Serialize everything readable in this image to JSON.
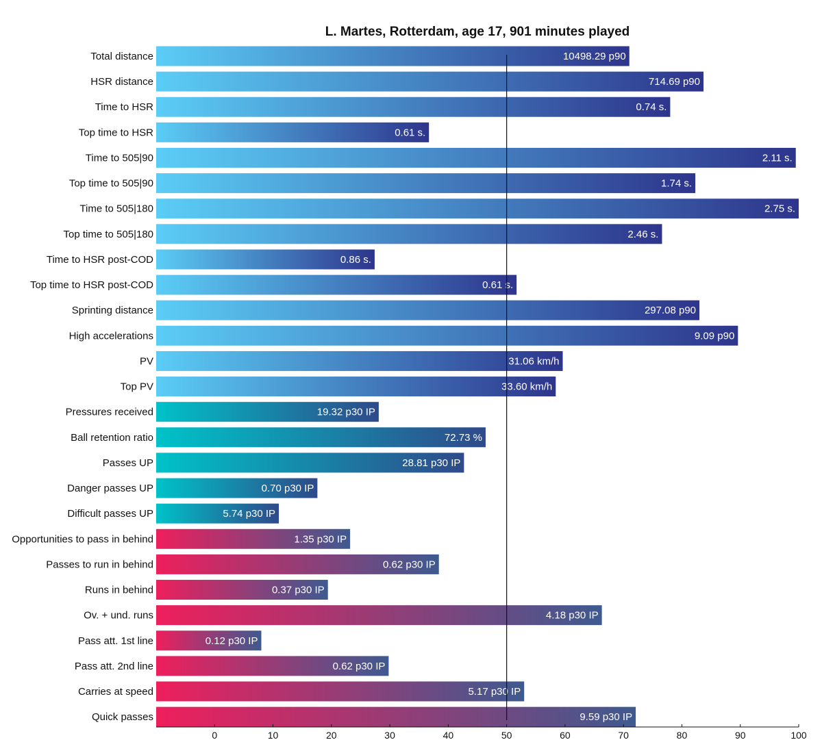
{
  "chart_data": {
    "type": "bar",
    "orientation": "horizontal",
    "title": "L. Martes, Rotterdam, age 17, 901 minutes played",
    "xlabel": "",
    "ylabel": "",
    "xlim": [
      -10,
      100
    ],
    "xticks": [
      0,
      10,
      20,
      30,
      40,
      50,
      60,
      70,
      80,
      90,
      100
    ],
    "reference_line": 50,
    "grid": false,
    "groups": [
      {
        "name": "physical",
        "color_start": "#5bcdf6",
        "color_end": "#2e358c"
      },
      {
        "name": "possession",
        "color_start": "#00c2c8",
        "color_end": "#2f4a8a"
      },
      {
        "name": "off-ball",
        "color_start": "#ee1f5c",
        "color_end": "#3e5a90"
      }
    ],
    "bars": [
      {
        "category": "Total distance",
        "value": 71,
        "label": "10498.29 p90",
        "group": "physical"
      },
      {
        "category": "HSR distance",
        "value": 83.7,
        "label": "714.69 p90",
        "group": "physical"
      },
      {
        "category": "Time to HSR",
        "value": 78,
        "label": "0.74 s.",
        "group": "physical"
      },
      {
        "category": "Top time to HSR",
        "value": 36.7,
        "label": "0.61 s.",
        "group": "physical"
      },
      {
        "category": "Time to 505|90",
        "value": 99.5,
        "label": "2.11 s.",
        "group": "physical"
      },
      {
        "category": "Top time to 505|90",
        "value": 82.3,
        "label": "1.74 s.",
        "group": "physical"
      },
      {
        "category": "Time to 505|180",
        "value": 100,
        "label": "2.75 s.",
        "group": "physical"
      },
      {
        "category": "Top time to 505|180",
        "value": 76.6,
        "label": "2.46 s.",
        "group": "physical"
      },
      {
        "category": "Time to HSR post-COD",
        "value": 27.4,
        "label": "0.86 s.",
        "group": "physical"
      },
      {
        "category": "Top time to HSR post-COD",
        "value": 51.7,
        "label": "0.61 s.",
        "group": "physical"
      },
      {
        "category": "Sprinting distance",
        "value": 83,
        "label": "297.08 p90",
        "group": "physical"
      },
      {
        "category": "High accelerations",
        "value": 89.6,
        "label": "9.09 p90",
        "group": "physical"
      },
      {
        "category": "PV",
        "value": 59.6,
        "label": "31.06 km/h",
        "group": "physical"
      },
      {
        "category": "Top PV",
        "value": 58.4,
        "label": "33.60 km/h",
        "group": "physical"
      },
      {
        "category": "Pressures received",
        "value": 28.1,
        "label": "19.32 p30 IP",
        "group": "possession"
      },
      {
        "category": "Ball retention ratio",
        "value": 46.4,
        "label": "72.73 %",
        "group": "possession"
      },
      {
        "category": "Passes UP",
        "value": 42.7,
        "label": "28.81 p30 IP",
        "group": "possession"
      },
      {
        "category": "Danger passes UP",
        "value": 17.6,
        "label": "0.70 p30 IP",
        "group": "possession"
      },
      {
        "category": "Difficult passes UP",
        "value": 11,
        "label": "5.74 p30 IP",
        "group": "possession"
      },
      {
        "category": "Opportunities to pass in behind",
        "value": 23.2,
        "label": "1.35 p30 IP",
        "group": "off-ball"
      },
      {
        "category": "Passes to run in behind",
        "value": 38.4,
        "label": "0.62 p30 IP",
        "group": "off-ball"
      },
      {
        "category": "Runs in behind",
        "value": 19.4,
        "label": "0.37 p30 IP",
        "group": "off-ball"
      },
      {
        "category": "Ov. + und. runs",
        "value": 66.3,
        "label": "4.18 p30 IP",
        "group": "off-ball"
      },
      {
        "category": "Pass att. 1st line",
        "value": 8,
        "label": "0.12 p30 IP",
        "group": "off-ball"
      },
      {
        "category": "Pass att. 2nd line",
        "value": 29.8,
        "label": "0.62 p30 IP",
        "group": "off-ball"
      },
      {
        "category": "Carries at speed",
        "value": 53,
        "label": "5.17 p30 IP",
        "group": "off-ball"
      },
      {
        "category": "Quick passes",
        "value": 72.1,
        "label": "9.59 p30 IP",
        "group": "off-ball"
      }
    ]
  }
}
